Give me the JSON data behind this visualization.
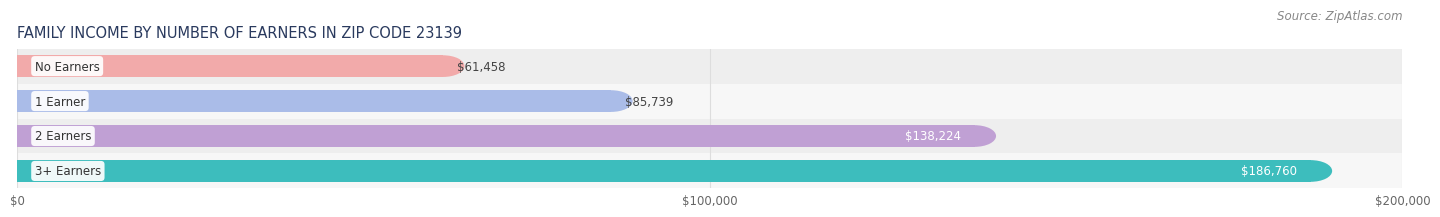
{
  "title": "FAMILY INCOME BY NUMBER OF EARNERS IN ZIP CODE 23139",
  "source": "Source: ZipAtlas.com",
  "categories": [
    "No Earners",
    "1 Earner",
    "2 Earners",
    "3+ Earners"
  ],
  "values": [
    61458,
    85739,
    138224,
    186760
  ],
  "labels": [
    "$61,458",
    "$85,739",
    "$138,224",
    "$186,760"
  ],
  "bar_colors": [
    "#F2AAAA",
    "#AABCE8",
    "#C0A0D4",
    "#3DBDBD"
  ],
  "row_bg_colors": [
    "#EEEEEE",
    "#F7F7F7",
    "#EEEEEE",
    "#F7F7F7"
  ],
  "xlim": [
    0,
    200000
  ],
  "xticks": [
    0,
    100000,
    200000
  ],
  "xticklabels": [
    "$0",
    "$100,000",
    "$200,000"
  ],
  "title_fontsize": 10.5,
  "source_fontsize": 8.5,
  "label_inside_threshold": 120000,
  "background_color": "#FFFFFF",
  "bar_height": 0.62,
  "label_color_inside": "#FFFFFF",
  "label_color_outside": "#444444",
  "cat_label_color": "#333333",
  "grid_color": "#DDDDDD"
}
